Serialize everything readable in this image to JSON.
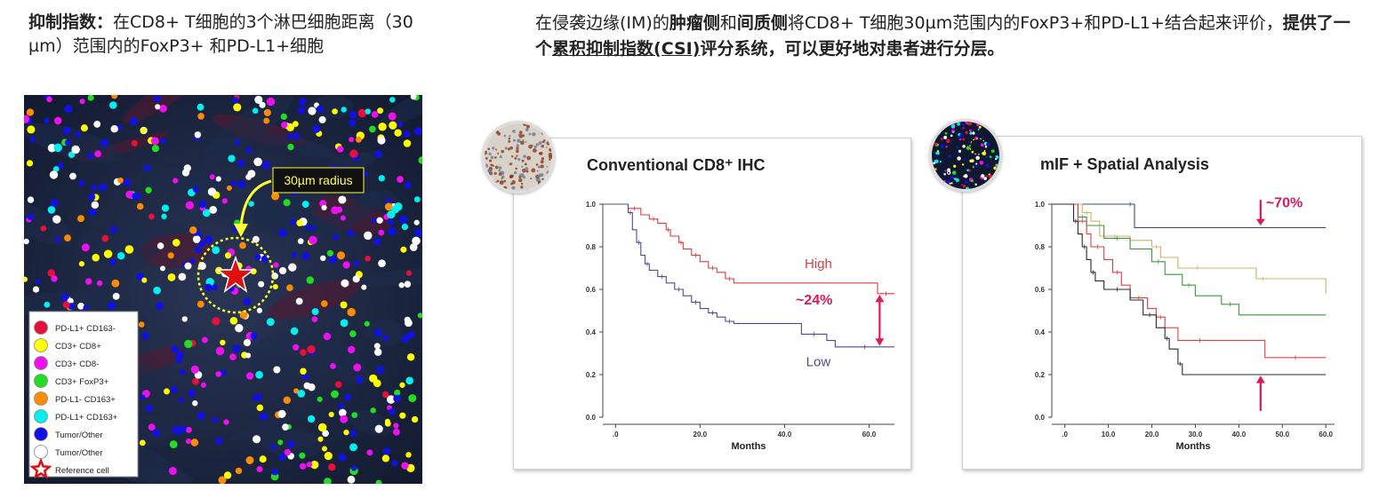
{
  "header_left": {
    "bold": "抑制指数：",
    "text": "在CD8+ T细胞的3个淋巴细胞距离（30 µm）范围内的FoxP3+ 和PD-L1+细胞"
  },
  "header_right": {
    "part1": "在侵袭边缘(IM)的",
    "bold1": "肿瘤侧",
    "part2": "和",
    "bold2": "间质侧",
    "part3": "将CD8+ T细胞30µm范围内的FoxP3+和PD-L1+结合起来评价，",
    "bold3": "提供了一个",
    "bold_underline": "累积抑制指数(CSI)",
    "bold4": "评分系统，可以更好地对患者进行分层。"
  },
  "image_panel": {
    "radius_label": "30µm radius",
    "legend": [
      {
        "label": "PD-L1+ CD163-",
        "color": "#e8103a",
        "shape": "circle"
      },
      {
        "label": "CD3+ CD8+",
        "color": "#ffff00",
        "shape": "circle"
      },
      {
        "label": "CD3+ CD8-",
        "color": "#ee10ee",
        "shape": "circle"
      },
      {
        "label": "CD3+ FoxP3+",
        "color": "#22dd22",
        "shape": "circle"
      },
      {
        "label": "PD-L1- CD163+",
        "color": "#ff8c00",
        "shape": "circle"
      },
      {
        "label": "PD-L1+ CD163+",
        "color": "#00f0f0",
        "shape": "circle"
      },
      {
        "label": "Tumor/Other",
        "color": "#1010e0",
        "shape": "circle"
      },
      {
        "label": "Tumor/Other",
        "color": "#ffffff",
        "shape": "circle"
      },
      {
        "label": "Reference cell",
        "color": "#e01010",
        "shape": "star"
      }
    ]
  },
  "chart_data": [
    {
      "type": "line",
      "title": "Conventional CD8⁺ IHC",
      "xlabel": "Months",
      "ylabel": "",
      "xlim": [
        -3,
        66
      ],
      "ylim": [
        0,
        1.0
      ],
      "x_ticks": [
        ".0",
        "20.0",
        "40.0",
        "60.0"
      ],
      "x_tick_values": [
        0,
        20,
        40,
        60
      ],
      "y_ticks": [
        "0.0",
        "0.2",
        "0.4",
        "0.6",
        "0.8",
        "1.0"
      ],
      "y_tick_values": [
        0,
        0.2,
        0.4,
        0.6,
        0.8,
        1.0
      ],
      "annotation": "~24%",
      "series": [
        {
          "name": "High",
          "color": "#e03c3c",
          "x": [
            -3,
            3,
            6,
            8,
            10,
            12,
            13,
            15,
            16,
            18,
            20,
            22,
            24,
            26,
            28,
            62,
            66
          ],
          "y": [
            1.0,
            0.98,
            0.95,
            0.93,
            0.91,
            0.88,
            0.85,
            0.82,
            0.79,
            0.76,
            0.73,
            0.7,
            0.68,
            0.65,
            0.63,
            0.58,
            0.58
          ]
        },
        {
          "name": "Low",
          "color": "#4a4a9a",
          "x": [
            -3,
            3,
            4,
            5,
            6,
            7,
            8,
            10,
            12,
            14,
            16,
            18,
            20,
            22,
            24,
            26,
            28,
            44,
            50,
            52,
            66
          ],
          "y": [
            1.0,
            0.96,
            0.88,
            0.82,
            0.76,
            0.72,
            0.69,
            0.66,
            0.63,
            0.6,
            0.57,
            0.54,
            0.51,
            0.49,
            0.47,
            0.45,
            0.44,
            0.39,
            0.36,
            0.33,
            0.33
          ]
        }
      ]
    },
    {
      "type": "line",
      "title": "mIF + Spatial Analysis",
      "xlabel": "Months",
      "ylabel": "",
      "xlim": [
        -3,
        62
      ],
      "ylim": [
        0,
        1.0
      ],
      "x_ticks": [
        ".0",
        "10.0",
        "20.0",
        "30.0",
        "40.0",
        "50.0",
        "60.0"
      ],
      "x_tick_values": [
        0,
        10,
        20,
        30,
        40,
        50,
        60
      ],
      "y_ticks": [
        "0.0",
        "0.2",
        "0.4",
        "0.6",
        "0.8",
        "1.0"
      ],
      "y_tick_values": [
        0,
        0.2,
        0.4,
        0.6,
        0.8,
        1.0
      ],
      "annotation": "~70%",
      "series": [
        {
          "color": "#3a4a8a",
          "x": [
            -3,
            14,
            16,
            60
          ],
          "y": [
            1.0,
            1.0,
            0.89,
            0.89
          ]
        },
        {
          "color": "#d4b060",
          "x": [
            -3,
            4,
            6,
            8,
            15,
            20,
            22,
            26,
            35,
            44,
            47,
            60
          ],
          "y": [
            1.0,
            0.96,
            0.92,
            0.85,
            0.83,
            0.8,
            0.75,
            0.7,
            0.7,
            0.65,
            0.65,
            0.58
          ]
        },
        {
          "color": "#3a9a3a",
          "x": [
            -3,
            3,
            5,
            9,
            15,
            20,
            23,
            27,
            30,
            36,
            40,
            60
          ],
          "y": [
            1.0,
            0.94,
            0.9,
            0.84,
            0.79,
            0.73,
            0.67,
            0.62,
            0.57,
            0.53,
            0.48,
            0.48
          ]
        },
        {
          "color": "#e04040",
          "x": [
            -3,
            3,
            5,
            6,
            9,
            11,
            13,
            15,
            19,
            21,
            23,
            26,
            36,
            46,
            60
          ],
          "y": [
            1.0,
            0.92,
            0.86,
            0.8,
            0.74,
            0.68,
            0.62,
            0.56,
            0.51,
            0.47,
            0.42,
            0.36,
            0.36,
            0.28,
            0.28
          ]
        },
        {
          "color": "#2a2a2a",
          "x": [
            -3,
            2,
            3,
            4,
            5,
            6,
            7,
            9,
            15,
            18,
            21,
            23,
            24,
            26,
            27,
            60
          ],
          "y": [
            1.0,
            0.92,
            0.86,
            0.8,
            0.74,
            0.68,
            0.64,
            0.6,
            0.55,
            0.48,
            0.42,
            0.37,
            0.32,
            0.25,
            0.2,
            0.2
          ]
        }
      ]
    }
  ]
}
